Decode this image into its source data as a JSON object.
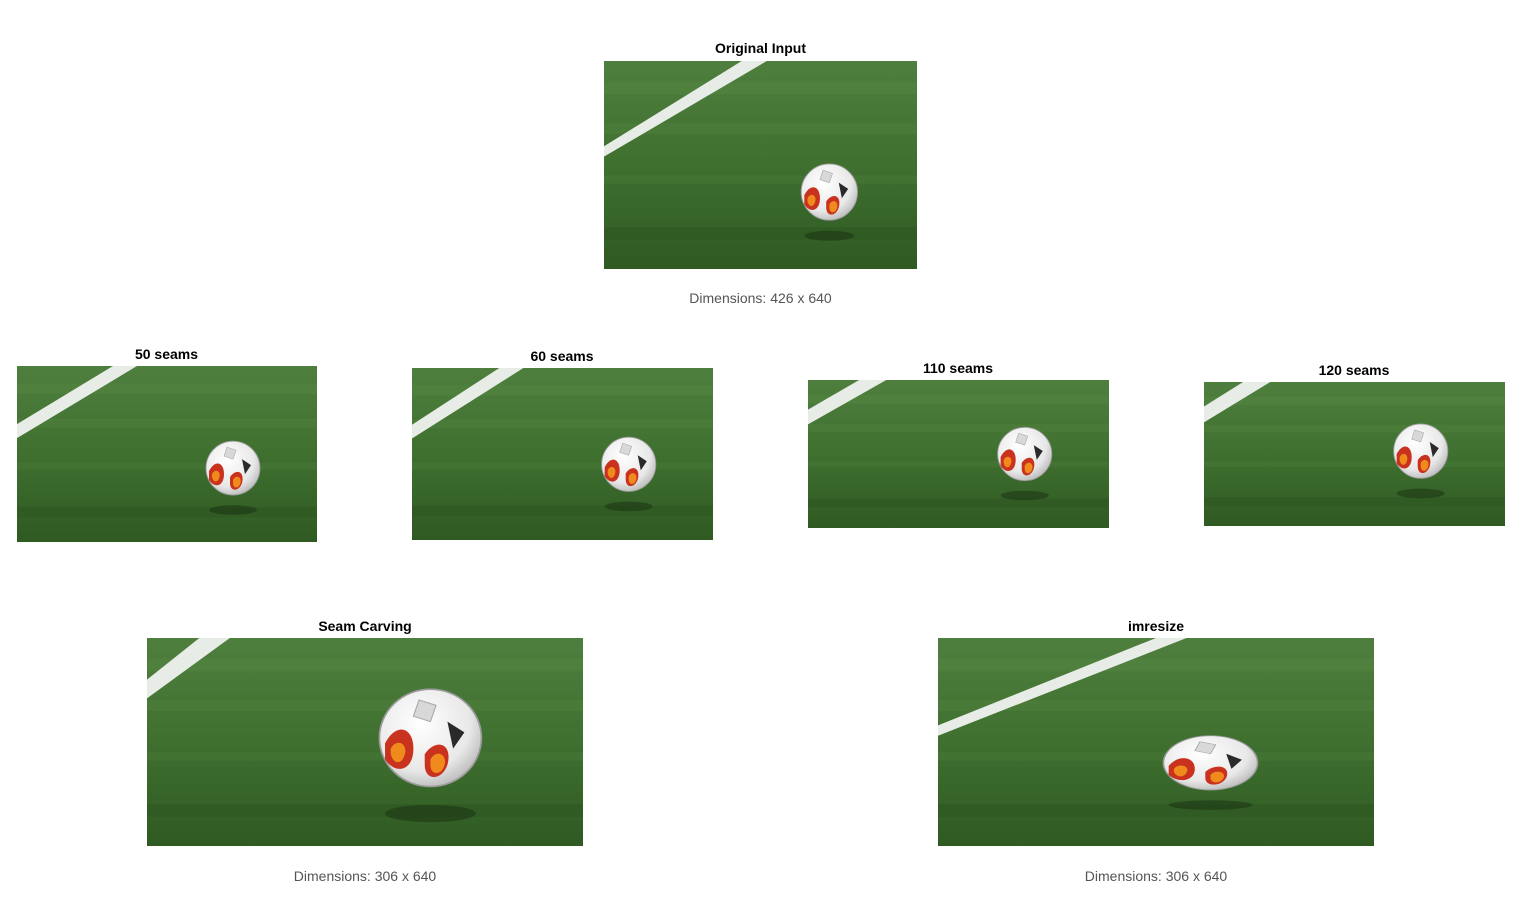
{
  "original": {
    "title": "Original Input",
    "caption": "Dimensions: 426 x 640"
  },
  "seam_steps": [
    {
      "title": "50 seams"
    },
    {
      "title": "60 seams"
    },
    {
      "title": "110 seams"
    },
    {
      "title": "120 seams"
    }
  ],
  "results": {
    "seam_carving": {
      "title": "Seam Carving",
      "caption": "Dimensions: 306 x 640"
    },
    "imresize": {
      "title": "imresize",
      "caption": "Dimensions: 306 x 640"
    }
  },
  "colors": {
    "grass_dark": "#2f5a22",
    "grass_mid": "#3f7030",
    "grass_light": "#5a8a45",
    "line": "#e8ece6",
    "ball_white": "#f2f2f2",
    "ball_red": "#c8321e",
    "ball_orange": "#f08a1c",
    "ball_dark": "#2a2a2a"
  }
}
